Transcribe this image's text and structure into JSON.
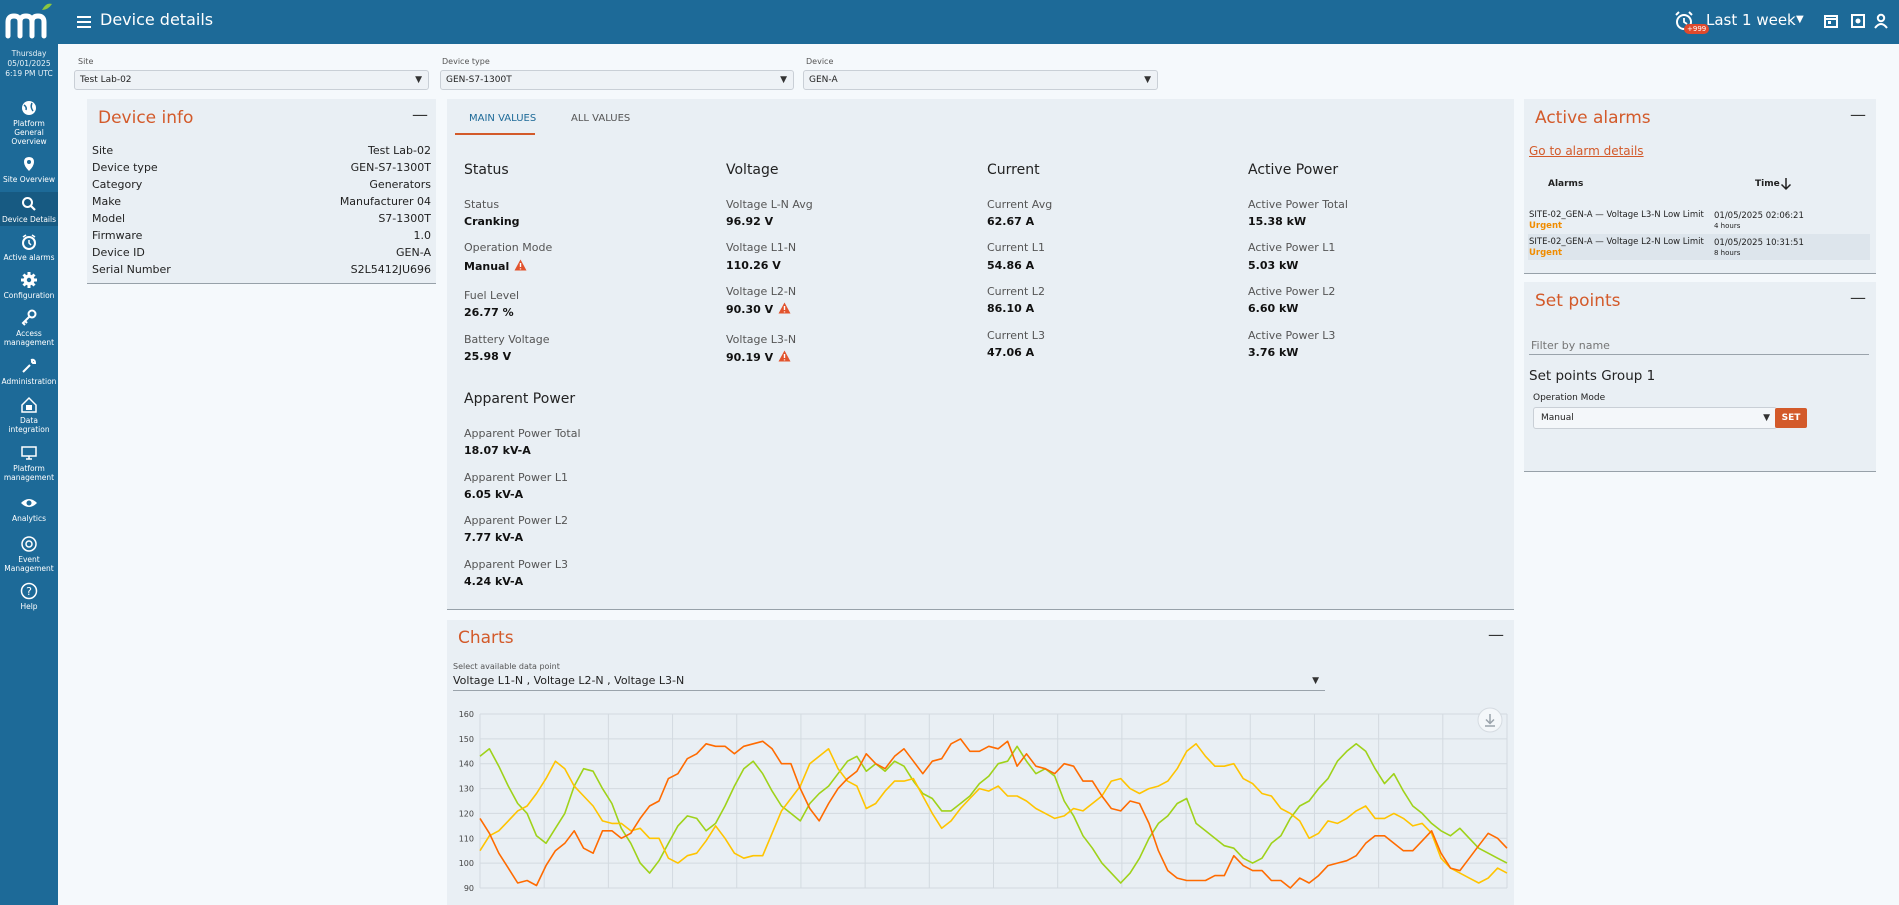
{
  "sidebar": {
    "date": [
      "Thursday",
      "05/01/2025",
      "6:19 PM UTC"
    ],
    "items": [
      {
        "label": "Platform General Overview",
        "icon": "globe-icon"
      },
      {
        "label": "Site Overview",
        "icon": "map-pin-icon"
      },
      {
        "label": "Device Details",
        "icon": "search-icon"
      },
      {
        "label": "Active alarms",
        "icon": "alarm-clock-icon"
      },
      {
        "label": "Configuration",
        "icon": "gear-icon"
      },
      {
        "label": "Access management",
        "icon": "key-icon"
      },
      {
        "label": "Administration",
        "icon": "wrench-icon"
      },
      {
        "label": "Data integration",
        "icon": "data-integration-icon"
      },
      {
        "label": "Platform management",
        "icon": "monitor-icon"
      },
      {
        "label": "Analytics",
        "icon": "eye-icon"
      },
      {
        "label": "Event Management",
        "icon": "event-icon"
      },
      {
        "label": "Help",
        "icon": "help-icon"
      }
    ],
    "active": "Device Details"
  },
  "header": {
    "title": "Device details",
    "alarm_badge": "+999",
    "time_range": "Last 1 week"
  },
  "filters": {
    "site": {
      "label": "Site",
      "value": "Test Lab-02"
    },
    "device_type": {
      "label": "Device type",
      "value": "GEN-S7-1300T"
    },
    "device": {
      "label": "Device",
      "value": "GEN-A"
    }
  },
  "device_info": {
    "title": "Device info",
    "rows": [
      {
        "key": "Site",
        "value": "Test Lab-02"
      },
      {
        "key": "Device type",
        "value": "GEN-S7-1300T"
      },
      {
        "key": "Category",
        "value": "Generators"
      },
      {
        "key": "Make",
        "value": "Manufacturer 04"
      },
      {
        "key": "Model",
        "value": "S7-1300T"
      },
      {
        "key": "Firmware",
        "value": "1.0"
      },
      {
        "key": "Device ID",
        "value": "GEN-A"
      },
      {
        "key": "Serial Number",
        "value": "S2L5412JU696"
      }
    ]
  },
  "values": {
    "tabs": [
      "MAIN VALUES",
      "ALL VALUES"
    ],
    "active_tab": "MAIN VALUES",
    "groups": {
      "status": {
        "title": "Status",
        "items": [
          {
            "label": "Status",
            "value": "Cranking",
            "warn": false
          },
          {
            "label": "Operation Mode",
            "value": "Manual",
            "warn": true
          },
          {
            "label": "Fuel Level",
            "value": "26.77 %",
            "warn": false
          },
          {
            "label": "Battery Voltage",
            "value": "25.98 V",
            "warn": false
          }
        ]
      },
      "voltage": {
        "title": "Voltage",
        "items": [
          {
            "label": "Voltage L-N Avg",
            "value": "96.92 V",
            "warn": false
          },
          {
            "label": "Voltage L1-N",
            "value": "110.26 V",
            "warn": false
          },
          {
            "label": "Voltage L2-N",
            "value": "90.30 V",
            "warn": true
          },
          {
            "label": "Voltage L3-N",
            "value": "90.19 V",
            "warn": true
          }
        ]
      },
      "current": {
        "title": "Current",
        "items": [
          {
            "label": "Current Avg",
            "value": "62.67 A",
            "warn": false
          },
          {
            "label": "Current L1",
            "value": "54.86 A",
            "warn": false
          },
          {
            "label": "Current L2",
            "value": "86.10 A",
            "warn": false
          },
          {
            "label": "Current L3",
            "value": "47.06 A",
            "warn": false
          }
        ]
      },
      "active_power": {
        "title": "Active Power",
        "items": [
          {
            "label": "Active Power Total",
            "value": "15.38 kW",
            "warn": false
          },
          {
            "label": "Active Power L1",
            "value": "5.03 kW",
            "warn": false
          },
          {
            "label": "Active Power L2",
            "value": "6.60 kW",
            "warn": false
          },
          {
            "label": "Active Power L3",
            "value": "3.76 kW",
            "warn": false
          }
        ]
      },
      "apparent_power": {
        "title": "Apparent Power",
        "items": [
          {
            "label": "Apparent Power Total",
            "value": "18.07 kV-A",
            "warn": false
          },
          {
            "label": "Apparent Power L1",
            "value": "6.05 kV-A",
            "warn": false
          },
          {
            "label": "Apparent Power L2",
            "value": "7.77 kV-A",
            "warn": false
          },
          {
            "label": "Apparent Power L3",
            "value": "4.24 kV-A",
            "warn": false
          }
        ]
      }
    }
  },
  "alarms": {
    "title": "Active alarms",
    "link": "Go to alarm details",
    "col_alarms": "Alarms",
    "col_time": "Time",
    "sort_icon": "arrow-down-icon",
    "rows": [
      {
        "desc": "SITE-02_GEN-A — Voltage L3-N Low Limit",
        "severity": "Urgent",
        "time": "01/05/2025 02:06:21",
        "ago": "4 hours"
      },
      {
        "desc": "SITE-02_GEN-A — Voltage L2-N Low Limit",
        "severity": "Urgent",
        "time": "01/05/2025 10:31:51",
        "ago": "8 hours"
      }
    ]
  },
  "setpoints": {
    "title": "Set points",
    "filter_placeholder": "Filter by name",
    "group_title": "Set points Group 1",
    "op_mode_label": "Operation Mode",
    "op_mode_value": "Manual",
    "set_button": "SET"
  },
  "charts": {
    "title": "Charts",
    "select_label": "Select available data point",
    "select_value": "Voltage L1-N , Voltage L2-N , Voltage L3-N"
  },
  "colors": {
    "accent": "#d35a2a",
    "nav": "#1d6a98",
    "warn": "#e2532d",
    "series_l1": "#9fd21a",
    "series_l2": "#ffc400",
    "series_l3": "#ff6b00"
  },
  "chart_data": {
    "type": "line",
    "ylim": [
      90,
      160
    ],
    "yticks": [
      "160",
      "150",
      "140",
      "130",
      "120",
      "110",
      "100",
      "90"
    ],
    "series": [
      {
        "color": "#9fd21a",
        "values": [
          143,
          146,
          139,
          131,
          124,
          120,
          111,
          108,
          114,
          120,
          131,
          138,
          137,
          130,
          124,
          114,
          108,
          100,
          96,
          101,
          108,
          115,
          119,
          118,
          113,
          116,
          123,
          131,
          138,
          141,
          136,
          129,
          123,
          120,
          117,
          124,
          128,
          131,
          136,
          141,
          143,
          137,
          140,
          137,
          141,
          139,
          133,
          128,
          126,
          121,
          121,
          124,
          127,
          132,
          135,
          140,
          141,
          147,
          141,
          136,
          138,
          135,
          125,
          119,
          111,
          106,
          100,
          96,
          92,
          96,
          102,
          110,
          116,
          119,
          124,
          126,
          116,
          113,
          110,
          107,
          106,
          102,
          100,
          102,
          108,
          111,
          118,
          123,
          125,
          130,
          134,
          141,
          145,
          148,
          145,
          138,
          132,
          136,
          129,
          123,
          120,
          116,
          113,
          111,
          114,
          110,
          106,
          104,
          102,
          100
        ]
      },
      {
        "color": "#ffc400",
        "values": [
          105,
          111,
          113,
          117,
          121,
          123,
          128,
          134,
          141,
          138,
          131,
          127,
          123,
          117,
          116,
          116,
          113,
          114,
          110,
          110,
          102,
          100,
          103,
          104,
          109,
          115,
          110,
          104,
          102,
          103,
          103,
          112,
          121,
          126,
          131,
          140,
          143,
          146,
          138,
          133,
          131,
          122,
          124,
          129,
          133,
          133,
          134,
          127,
          120,
          114,
          117,
          122,
          126,
          130,
          129,
          131,
          127,
          127,
          125,
          122,
          120,
          118,
          119,
          122,
          121,
          124,
          127,
          133,
          134,
          130,
          128,
          130,
          131,
          133,
          138,
          145,
          148,
          143,
          139,
          139,
          140,
          134,
          132,
          128,
          127,
          122,
          120,
          117,
          110,
          112,
          117,
          116,
          118,
          121,
          123,
          118,
          118,
          120,
          118,
          115,
          116,
          112,
          102,
          98,
          96,
          94,
          92,
          94,
          98,
          96
        ]
      },
      {
        "color": "#ff6b00",
        "values": [
          118,
          112,
          104,
          98,
          92,
          93,
          91,
          99,
          105,
          108,
          113,
          106,
          104,
          113,
          113,
          110,
          112,
          118,
          123,
          125,
          134,
          136,
          142,
          144,
          148,
          147,
          147,
          144,
          147,
          148,
          149,
          146,
          140,
          140,
          130,
          122,
          117,
          124,
          130,
          134,
          137,
          144,
          140,
          138,
          143,
          146,
          141,
          136,
          141,
          142,
          148,
          150,
          145,
          145,
          147,
          146,
          149,
          139,
          144,
          139,
          138,
          136,
          140,
          139,
          133,
          133,
          127,
          122,
          121,
          125,
          124,
          116,
          105,
          97,
          94,
          93,
          93,
          93,
          95,
          95,
          103,
          99,
          97,
          97,
          93,
          93,
          90,
          94,
          92,
          95,
          99,
          100,
          101,
          103,
          108,
          111,
          111,
          108,
          105,
          105,
          109,
          113,
          104,
          98,
          97,
          102,
          107,
          112,
          110,
          106
        ]
      }
    ]
  }
}
